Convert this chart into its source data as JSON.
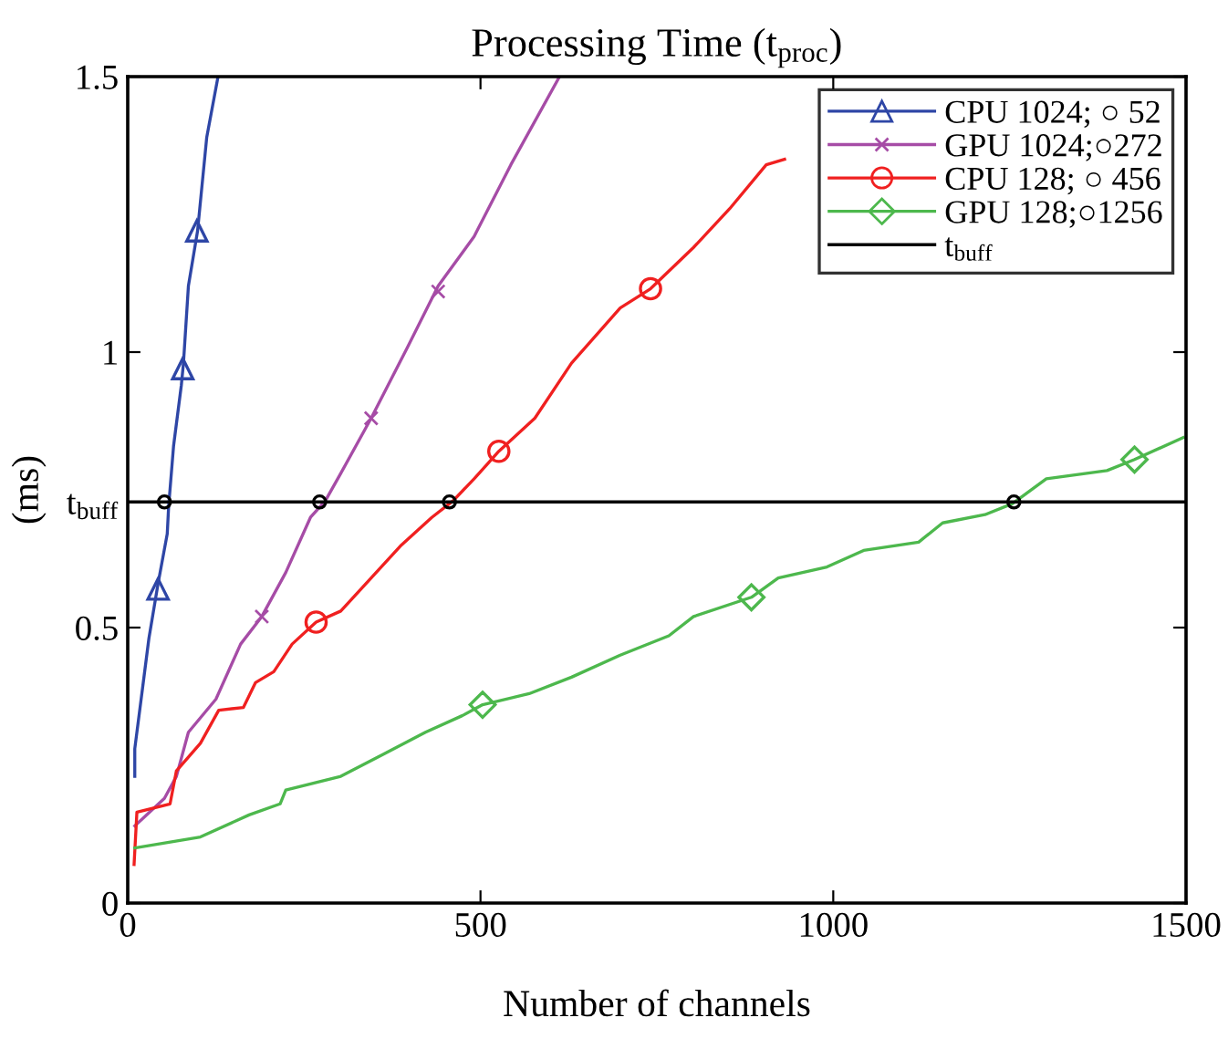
{
  "chart_data": {
    "type": "line",
    "title": "Processing Time (t$_{proc}$)",
    "xlabel": "Number of channels",
    "ylabel": "(ms)",
    "xlim": [
      0,
      1500
    ],
    "ylim": [
      0,
      1.5
    ],
    "xticks": [
      0,
      500,
      1000,
      1500
    ],
    "yticks": [
      0,
      0.5,
      {
        "value": 0.728,
        "label": "t$_{buff}$"
      },
      1,
      1.5
    ],
    "legend": "top right",
    "grid": false,
    "line_style": "solid",
    "series": [
      {
        "color": "#2e46a6",
        "x": [
          10,
          10,
          21,
          30,
          43,
          56,
          58,
          65,
          76,
          79,
          86,
          99,
          112,
          128
        ],
        "values": [
          0.23,
          0.28,
          0.39,
          0.48,
          0.58,
          0.67,
          0.72,
          0.83,
          0.94,
          0.98,
          1.12,
          1.22,
          1.39,
          1.5
        ]
      },
      {
        "color": "#a64ca6",
        "x": [
          10,
          52,
          69,
          86,
          125,
          160,
          190,
          224,
          259,
          280,
          302,
          345,
          397,
          440,
          491,
          543,
          612
        ],
        "values": [
          0.14,
          0.19,
          0.23,
          0.31,
          0.37,
          0.47,
          0.52,
          0.6,
          0.7,
          0.73,
          0.78,
          0.88,
          1.01,
          1.12,
          1.21,
          1.34,
          1.5
        ]
      },
      {
        "color": "#f02020",
        "x": [
          9,
          13,
          60,
          69,
          103,
          129,
          164,
          181,
          207,
          233,
          267,
          302,
          345,
          388,
          431,
          461,
          491,
          526,
          577,
          629,
          698,
          741,
          802,
          853,
          905,
          931
        ],
        "values": [
          0.07,
          0.165,
          0.18,
          0.24,
          0.29,
          0.35,
          0.355,
          0.4,
          0.42,
          0.47,
          0.51,
          0.53,
          0.59,
          0.65,
          0.7,
          0.73,
          0.77,
          0.82,
          0.88,
          0.98,
          1.08,
          1.115,
          1.19,
          1.26,
          1.34,
          1.35
        ]
      },
      {
        "color": "#4db84d",
        "x": [
          10,
          103,
          172,
          216,
          224,
          302,
          362,
          422,
          474,
          503,
          569,
          629,
          698,
          767,
          802,
          884,
          922,
          991,
          1043,
          1121,
          1155,
          1215,
          1254,
          1302,
          1388,
          1427,
          1496
        ],
        "values": [
          0.1,
          0.12,
          0.16,
          0.18,
          0.205,
          0.23,
          0.27,
          0.31,
          0.34,
          0.36,
          0.38,
          0.41,
          0.45,
          0.485,
          0.52,
          0.555,
          0.59,
          0.61,
          0.64,
          0.655,
          0.69,
          0.705,
          0.725,
          0.77,
          0.785,
          0.805,
          0.845
        ]
      },
      {
        "type": "scatter",
        "name": "CPU 1024; ○ 52",
        "color": "#2e46a6",
        "marker": "triangle",
        "x": [
          43,
          78,
          98
        ],
        "values": [
          0.57,
          0.97,
          1.22
        ]
      },
      {
        "type": "scatter",
        "name": "GPU 1024;○272",
        "color": "#a64ca6",
        "marker": "cross",
        "x": [
          190,
          345,
          440
        ],
        "values": [
          0.52,
          0.88,
          1.11
        ]
      },
      {
        "type": "scatter",
        "name": "CPU 128; ○ 456",
        "color": "#f02020",
        "marker": "circle",
        "x": [
          267,
          526,
          741
        ],
        "values": [
          0.51,
          0.82,
          1.115
        ]
      },
      {
        "type": "scatter",
        "name": "GPU 128;○1256",
        "color": "#4db84d",
        "marker": "diamond",
        "x": [
          503,
          884,
          1427
        ],
        "values": [
          0.36,
          0.555,
          0.805
        ]
      },
      {
        "type": "scatter",
        "color": "#000000",
        "marker": "circle",
        "x": [
          52,
          272,
          456,
          1256
        ],
        "values": [
          0.728,
          0.728,
          0.728,
          0.728
        ]
      }
    ],
    "ref_lines": [
      {
        "axis": "y",
        "value": 0.728,
        "label": "t$_{buff}$",
        "color": "#000000",
        "line_style": "solid"
      }
    ]
  }
}
